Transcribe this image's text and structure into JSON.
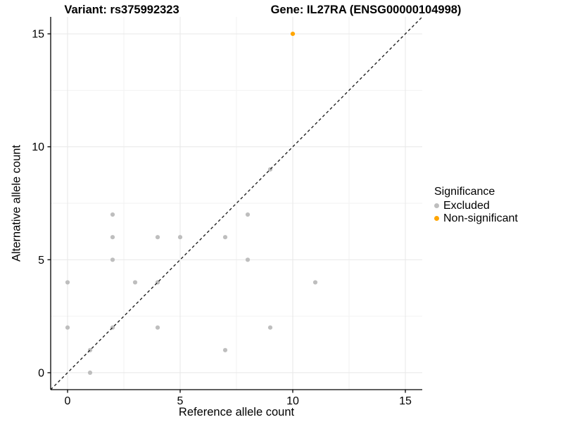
{
  "titles": {
    "variant": "Variant: rs375992323",
    "gene": "Gene: IL27RA (ENSG00000104998)"
  },
  "axes": {
    "x": {
      "label": "Reference allele count",
      "ticks": [
        0,
        5,
        10,
        15
      ],
      "minor": [
        2.5,
        7.5,
        12.5
      ]
    },
    "y": {
      "label": "Alternative allele count",
      "ticks": [
        0,
        5,
        10,
        15
      ],
      "minor": [
        2.5,
        7.5,
        12.5
      ]
    }
  },
  "legend": {
    "title": "Significance",
    "items": [
      {
        "label": "Excluded",
        "color": "#BEBEBE"
      },
      {
        "label": "Non-significant",
        "color": "#FFA500"
      }
    ]
  },
  "colors": {
    "excluded_point": "#BEBEBE",
    "non_significant_point": "#FFA500",
    "grid_major": "#E7E7E7",
    "grid_minor": "#F2F2F2",
    "axis_line": "#000000",
    "identity_line": "#222222"
  },
  "chart_data": {
    "type": "scatter",
    "title": "Variant: rs375992323   Gene: IL27RA (ENSG00000104998)",
    "xlabel": "Reference allele count",
    "ylabel": "Alternative allele count",
    "xlim": [
      -0.75,
      15.75
    ],
    "ylim": [
      -0.75,
      15.75
    ],
    "grid": true,
    "legend_position": "right",
    "identity_line": {
      "style": "dashed",
      "equation": "y = x",
      "from": [
        -0.75,
        -0.75
      ],
      "to": [
        15.75,
        15.75
      ]
    },
    "series": [
      {
        "name": "Excluded",
        "color": "#BEBEBE",
        "points": [
          [
            0,
            2
          ],
          [
            0,
            4
          ],
          [
            1,
            0
          ],
          [
            1,
            1
          ],
          [
            2,
            2
          ],
          [
            2,
            5
          ],
          [
            2,
            6
          ],
          [
            2,
            7
          ],
          [
            3,
            4
          ],
          [
            4,
            2
          ],
          [
            4,
            4
          ],
          [
            4,
            6
          ],
          [
            5,
            6
          ],
          [
            7,
            1
          ],
          [
            7,
            6
          ],
          [
            8,
            5
          ],
          [
            8,
            7
          ],
          [
            9,
            2
          ],
          [
            9,
            9
          ],
          [
            11,
            4
          ]
        ]
      },
      {
        "name": "Non-significant",
        "color": "#FFA500",
        "points": [
          [
            10,
            15
          ]
        ]
      }
    ]
  }
}
